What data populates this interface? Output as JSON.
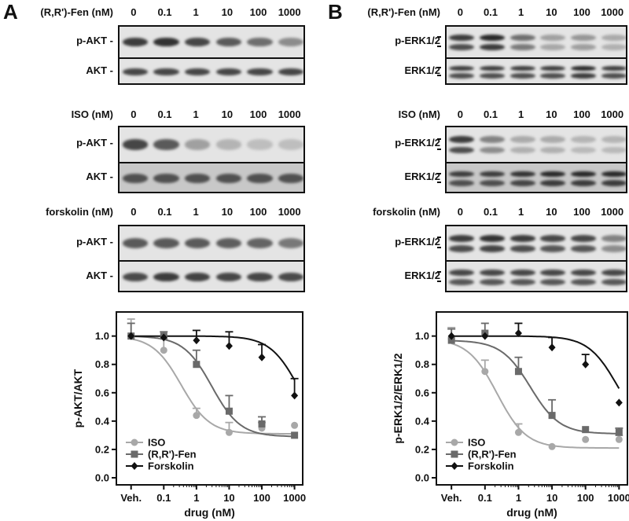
{
  "panels": [
    {
      "letter": "A",
      "blots": [
        {
          "condition": "(R,R')-Fen (nM)",
          "doses": [
            "0",
            "0.1",
            "1",
            "10",
            "100",
            "1000"
          ],
          "bands": [
            "p-AKT -",
            "AKT -"
          ],
          "intensity": [
            [
              0.85,
              0.9,
              0.8,
              0.7,
              0.6,
              0.45
            ],
            [
              0.8,
              0.8,
              0.8,
              0.8,
              0.8,
              0.8
            ]
          ]
        },
        {
          "condition": "ISO (nM)",
          "doses": [
            "0",
            "0.1",
            "1",
            "10",
            "100",
            "1000"
          ],
          "bands": [
            "p-AKT -",
            "AKT -"
          ],
          "intensity": [
            [
              0.8,
              0.7,
              0.35,
              0.25,
              0.2,
              0.2
            ],
            [
              0.75,
              0.75,
              0.75,
              0.75,
              0.75,
              0.75
            ]
          ]
        },
        {
          "condition": "forskolin (nM)",
          "doses": [
            "0",
            "0.1",
            "1",
            "10",
            "100",
            "1000"
          ],
          "bands": [
            "p-AKT -",
            "AKT -"
          ],
          "intensity": [
            [
              0.7,
              0.7,
              0.7,
              0.68,
              0.65,
              0.55
            ],
            [
              0.78,
              0.85,
              0.82,
              0.8,
              0.8,
              0.78
            ]
          ]
        }
      ]
    },
    {
      "letter": "B",
      "blots": [
        {
          "condition": "(R,R')-Fen (nM)",
          "doses": [
            "0",
            "0.1",
            "1",
            "10",
            "100",
            "1000"
          ],
          "bands": [
            "p-ERK1/2",
            "ERK1/2"
          ],
          "intensity": [
            [
              0.85,
              0.95,
              0.6,
              0.35,
              0.4,
              0.3
            ],
            [
              0.85,
              0.85,
              0.85,
              0.85,
              0.95,
              0.85
            ]
          ]
        },
        {
          "condition": "ISO (nM)",
          "doses": [
            "0",
            "0.1",
            "1",
            "10",
            "100",
            "1000"
          ],
          "bands": [
            "p-ERK1/2",
            "ERK1/2"
          ],
          "intensity": [
            [
              0.85,
              0.5,
              0.3,
              0.3,
              0.25,
              0.25
            ],
            [
              0.85,
              0.85,
              0.9,
              0.95,
              0.95,
              0.95
            ]
          ]
        },
        {
          "condition": "forskolin (nM)",
          "doses": [
            "0",
            "0.1",
            "1",
            "10",
            "100",
            "1000"
          ],
          "bands": [
            "p-ERK1/2",
            "ERK1/2"
          ],
          "intensity": [
            [
              0.85,
              0.9,
              0.85,
              0.8,
              0.8,
              0.5
            ],
            [
              0.8,
              0.8,
              0.8,
              0.8,
              0.8,
              0.8
            ]
          ]
        }
      ]
    }
  ],
  "colors": {
    "iso": "#a8a8a8",
    "fen": "#6a6a6a",
    "forskolin": "#111111"
  },
  "chart_data": [
    {
      "type": "scatter",
      "xlabel": "drug (nM)",
      "ylabel": "p-AKT/AKT",
      "xticks": [
        "Veh.",
        "0.1",
        "1",
        "10",
        "100",
        "1000"
      ],
      "yticks": [
        "0.0",
        "0.2",
        "0.4",
        "0.6",
        "0.8",
        "1.0"
      ],
      "ylim": [
        -0.05,
        1.17
      ],
      "xscale": "log",
      "legend_position": "bottom-left",
      "series": [
        {
          "name": "ISO",
          "marker": "circle",
          "color": "#a8a8a8",
          "x": [
            "Veh.",
            0.1,
            1,
            10,
            100,
            1000
          ],
          "y": [
            1.0,
            0.9,
            0.44,
            0.32,
            0.35,
            0.37
          ],
          "err": [
            0.12,
            0.08,
            0.05,
            0.07,
            0.04,
            0.0
          ]
        },
        {
          "name": "(R,R')-Fen",
          "marker": "square",
          "color": "#6a6a6a",
          "x": [
            "Veh.",
            0.1,
            1,
            10,
            100,
            1000
          ],
          "y": [
            1.0,
            1.0,
            0.8,
            0.47,
            0.38,
            0.3
          ],
          "err": [
            0.09,
            0.03,
            0.1,
            0.11,
            0.05,
            0.0
          ]
        },
        {
          "name": "Forskolin",
          "marker": "diamond",
          "color": "#111111",
          "x": [
            "Veh.",
            0.1,
            1,
            10,
            100,
            1000
          ],
          "y": [
            1.0,
            0.99,
            0.97,
            0.93,
            0.85,
            0.58
          ],
          "err": [
            0.0,
            0.0,
            0.07,
            0.1,
            0.09,
            0.12
          ]
        }
      ]
    },
    {
      "type": "scatter",
      "xlabel": "drug (nM)",
      "ylabel": "p-ERK1/2/ERK1/2",
      "xticks": [
        "Veh.",
        "0.1",
        "1",
        "10",
        "100",
        "1000"
      ],
      "yticks": [
        "0.0",
        "0.2",
        "0.4",
        "0.6",
        "0.8",
        "1.0"
      ],
      "ylim": [
        -0.05,
        1.17
      ],
      "xscale": "log",
      "legend_position": "bottom-left",
      "series": [
        {
          "name": "ISO",
          "marker": "circle",
          "color": "#a8a8a8",
          "x": [
            "Veh.",
            0.1,
            1,
            10,
            100,
            1000
          ],
          "y": [
            0.98,
            0.75,
            0.32,
            0.22,
            0.27,
            0.27
          ],
          "err": [
            0.08,
            0.08,
            0.06,
            0.0,
            0.0,
            0.03
          ]
        },
        {
          "name": "(R,R')-Fen",
          "marker": "square",
          "color": "#6a6a6a",
          "x": [
            "Veh.",
            0.1,
            1,
            10,
            100,
            1000
          ],
          "y": [
            0.97,
            1.02,
            0.75,
            0.44,
            0.34,
            0.32
          ],
          "err": [
            0.08,
            0.07,
            0.1,
            0.11,
            0.0,
            0.03
          ]
        },
        {
          "name": "Forskolin",
          "marker": "diamond",
          "color": "#111111",
          "x": [
            "Veh.",
            0.1,
            1,
            10,
            100,
            1000
          ],
          "y": [
            1.0,
            1.0,
            1.02,
            0.92,
            0.8,
            0.53
          ],
          "err": [
            0.0,
            0.0,
            0.07,
            0.07,
            0.07,
            0.0
          ]
        }
      ]
    }
  ]
}
